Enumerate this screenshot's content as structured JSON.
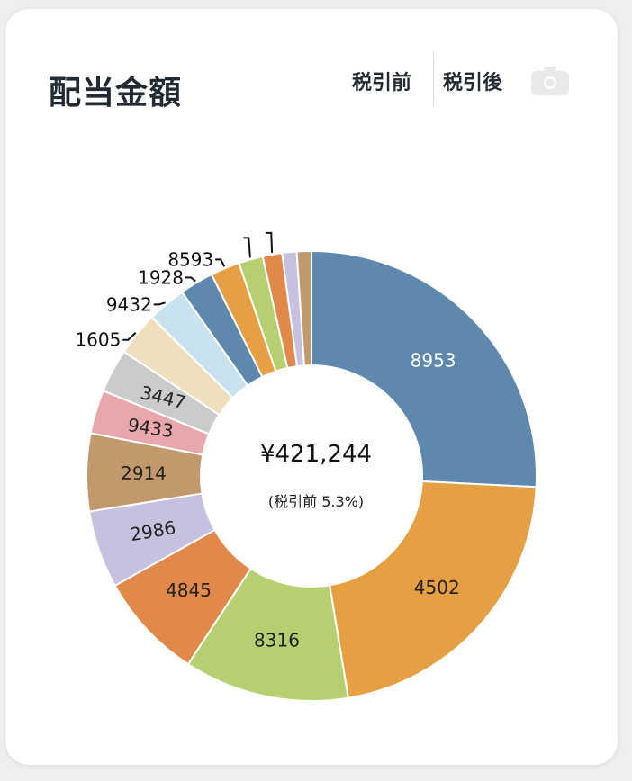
{
  "card": {
    "title": "配当金額",
    "toggle_before_tax": "税引前",
    "toggle_after_tax": "税引後",
    "camera_icon": "camera-icon"
  },
  "center": {
    "total": "¥421,244",
    "note": "(税引前 5.3%)"
  },
  "chart_data": {
    "type": "pie",
    "donut": true,
    "legend": "none",
    "slices": [
      {
        "label": "8953",
        "value": 74,
        "color": "#5e88ae",
        "label_position": "inside",
        "label_color": "#ffffff"
      },
      {
        "label": "4502",
        "value": 62,
        "color": "#e79f43",
        "label_position": "inside",
        "label_color": "#222222"
      },
      {
        "label": "8316",
        "value": 34,
        "color": "#b6d071",
        "label_position": "inside",
        "label_color": "#222222"
      },
      {
        "label": "4845",
        "value": 22,
        "color": "#e1894a",
        "label_position": "inside",
        "label_color": "#222222"
      },
      {
        "label": "2986",
        "value": 16,
        "color": "#c7c0df",
        "label_position": "inside",
        "label_color": "#222222"
      },
      {
        "label": "2914",
        "value": 16,
        "color": "#c2996c",
        "label_position": "inside",
        "label_color": "#222222"
      },
      {
        "label": "9433",
        "value": 9,
        "color": "#e8a8ab",
        "label_position": "inside",
        "label_color": "#222222"
      },
      {
        "label": "3447",
        "value": 9,
        "color": "#cbcbcb",
        "label_position": "inside",
        "label_color": "#222222"
      },
      {
        "label": "1605",
        "value": 9,
        "color": "#efdfbc",
        "label_position": "outside",
        "label_color": "#111111"
      },
      {
        "label": "9432",
        "value": 8,
        "color": "#c8e2ee",
        "label_position": "outside",
        "label_color": "#111111"
      },
      {
        "label": "1928",
        "value": 7,
        "color": "#5e88ae",
        "label_position": "outside",
        "label_color": "#111111"
      },
      {
        "label": "8593",
        "value": 6,
        "color": "#e79f43",
        "label_position": "outside",
        "label_color": "#111111"
      },
      {
        "label": "",
        "value": 5,
        "color": "#b6d071",
        "label_position": "outside",
        "label_color": "#111111"
      },
      {
        "label": "",
        "value": 4,
        "color": "#e1894a",
        "label_position": "outside",
        "label_color": "#111111"
      },
      {
        "label": "",
        "value": 3,
        "color": "#c7c0df",
        "label_position": "none",
        "label_color": "#111111"
      },
      {
        "label": "",
        "value": 3,
        "color": "#c2996c",
        "label_position": "none",
        "label_color": "#111111"
      }
    ]
  }
}
